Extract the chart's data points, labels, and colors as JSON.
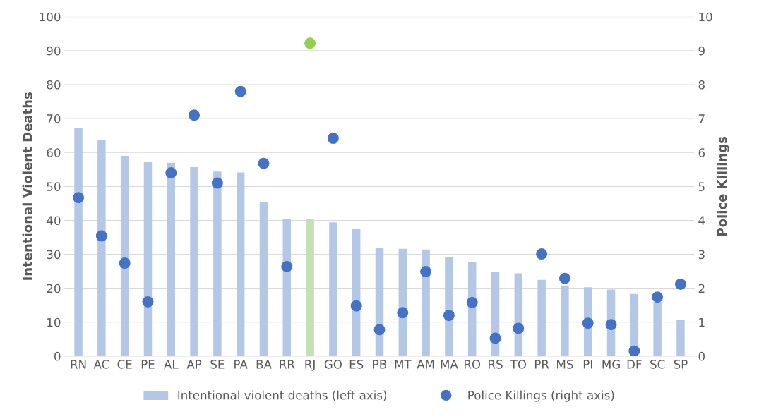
{
  "chart_data": {
    "type": "bar",
    "categories": [
      "RN",
      "AC",
      "CE",
      "PE",
      "AL",
      "AP",
      "SE",
      "PA",
      "BA",
      "RR",
      "RJ",
      "GO",
      "ES",
      "PB",
      "MT",
      "AM",
      "MA",
      "RO",
      "RS",
      "TO",
      "PR",
      "MS",
      "PI",
      "MG",
      "DF",
      "SC",
      "SP"
    ],
    "ylabel": "Intentional Violent Deaths",
    "y2label": "Police Killings",
    "ylim": [
      0,
      100
    ],
    "yticks": [
      0,
      10,
      20,
      30,
      40,
      50,
      60,
      70,
      80,
      90,
      100
    ],
    "y2lim": [
      0,
      10
    ],
    "y2ticks": [
      0,
      1,
      2,
      3,
      4,
      5,
      6,
      7,
      8,
      9,
      10
    ],
    "grid": "y",
    "legend": "bottom",
    "series": [
      {
        "name": "Intentional violent deaths (left axis)",
        "color": "#b4c7e7",
        "colors": [
          "#b4c7e7",
          "#b4c7e7",
          "#b4c7e7",
          "#b4c7e7",
          "#b4c7e7",
          "#b4c7e7",
          "#b4c7e7",
          "#b4c7e7",
          "#b4c7e7",
          "#b4c7e7",
          "#c5e0b4",
          "#b4c7e7",
          "#b4c7e7",
          "#b4c7e7",
          "#b4c7e7",
          "#b4c7e7",
          "#b4c7e7",
          "#b4c7e7",
          "#b4c7e7",
          "#b4c7e7",
          "#b4c7e7",
          "#b4c7e7",
          "#b4c7e7",
          "#b4c7e7",
          "#b4c7e7",
          "#b4c7e7",
          "#b4c7e7"
        ],
        "values": [
          67.2,
          63.8,
          59,
          57.2,
          57,
          55.7,
          54.4,
          54.1,
          45.4,
          40.3,
          40.4,
          39.4,
          37.5,
          32,
          31.6,
          31.4,
          29.3,
          27.6,
          24.8,
          24.4,
          22.5,
          20.8,
          20.3,
          19.6,
          18.3,
          16,
          10.7
        ]
      },
      {
        "name": "Police Killings (right axis)",
        "type": "scatter",
        "axis": "y2",
        "marker": "circle",
        "color": "#4472c4",
        "colors": [
          "#4472c4",
          "#4472c4",
          "#4472c4",
          "#4472c4",
          "#4472c4",
          "#4472c4",
          "#4472c4",
          "#4472c4",
          "#4472c4",
          "#4472c4",
          "#92d050",
          "#4472c4",
          "#4472c4",
          "#4472c4",
          "#4472c4",
          "#4472c4",
          "#4472c4",
          "#4472c4",
          "#4472c4",
          "#4472c4",
          "#4472c4",
          "#4472c4",
          "#4472c4",
          "#4472c4",
          "#4472c4",
          "#4472c4",
          "#4472c4"
        ],
        "x": [
          "RN",
          "AC",
          "CE",
          "PE",
          "AL",
          "AP",
          "SE",
          "PA",
          "BA",
          "RR",
          "RJ",
          "GO",
          "ES",
          "PB",
          "MT",
          "AM",
          "MA",
          "RO",
          "RS",
          "TO",
          "PR",
          "MS",
          "PI",
          "MG",
          "DF",
          "SC",
          "SP"
        ],
        "values": [
          4.67,
          3.54,
          2.74,
          1.6,
          5.4,
          7.1,
          5.1,
          7.8,
          5.68,
          2.64,
          9.22,
          6.42,
          1.48,
          0.78,
          1.28,
          2.49,
          1.2,
          1.58,
          0.53,
          0.82,
          3.01,
          2.29,
          0.97,
          0.93,
          0.15,
          1.74,
          2.12
        ]
      }
    ]
  }
}
